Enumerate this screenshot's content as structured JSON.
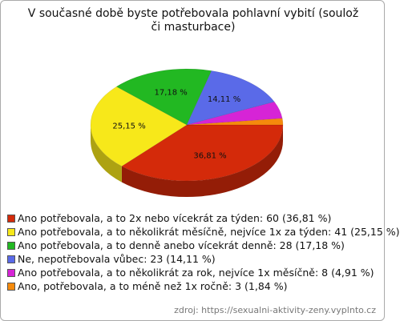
{
  "chart_data": {
    "type": "pie3d",
    "title": "V současné době byste potřebovala pohlavní vybití (soulož či masturbace)",
    "categories": [
      "Ano potřebovala, a to 2x nebo vícekrát za týden: 60 (36,81 %)",
      "Ano potřebovala, a to několikrát měsíčně, nejvíce 1x za týden: 41 (25,15 %)",
      "Ano potřebovala, a to denně anebo vícekrát denně: 28 (17,18 %)",
      "Ne, nepotřebovala vůbec: 23 (14,11 %)",
      "Ano potřebovala, a to několikrát za rok, nejvíce 1x měsíčně: 8 (4,91 %)",
      "Ano, potřebovala, a to méně než 1x ročně: 3 (1,84 %)"
    ],
    "values": [
      36.81,
      25.15,
      17.18,
      14.11,
      4.91,
      1.84
    ],
    "value_labels": [
      "36,81 %",
      "25,15 %",
      "17,18 %",
      "14,11 %",
      null,
      null
    ],
    "colors": [
      "#d42a0a",
      "#f7e81a",
      "#22b822",
      "#5a6ae8",
      "#d624d6",
      "#f58a0c"
    ],
    "source": "zdroj: https://sexualni-aktivity-zeny.vyplnto.cz"
  }
}
